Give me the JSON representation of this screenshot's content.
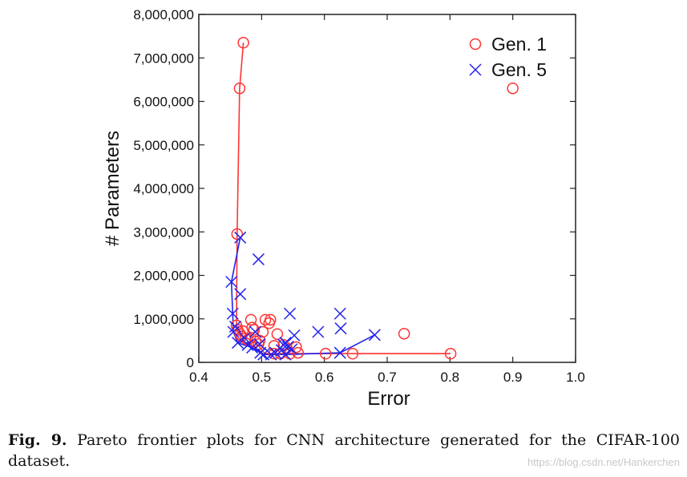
{
  "chart_data": {
    "type": "scatter",
    "title": "",
    "xlabel": "Error",
    "ylabel": "# Parameters",
    "xlim": [
      0.4,
      1.0
    ],
    "ylim": [
      0,
      8000000
    ],
    "xticks": [
      "0.4",
      "0.5",
      "0.6",
      "0.7",
      "0.8",
      "0.9",
      "1.0"
    ],
    "yticks": [
      "0",
      "1,000,000",
      "2,000,000",
      "3,000,000",
      "4,000,000",
      "5,000,000",
      "6,000,000",
      "7,000,000",
      "8,000,000"
    ],
    "grid": false,
    "legend_position": "top-right",
    "series": [
      {
        "name": "Gen. 1",
        "marker": "circle",
        "color": "#ff3333",
        "points": [
          [
            0.471,
            7350000
          ],
          [
            0.465,
            6300000
          ],
          [
            0.9,
            6300000
          ],
          [
            0.461,
            2950000
          ],
          [
            0.46,
            850000
          ],
          [
            0.462,
            750000
          ],
          [
            0.466,
            650000
          ],
          [
            0.47,
            720000
          ],
          [
            0.468,
            600000
          ],
          [
            0.474,
            550000
          ],
          [
            0.478,
            520000
          ],
          [
            0.483,
            980000
          ],
          [
            0.485,
            800000
          ],
          [
            0.488,
            750000
          ],
          [
            0.49,
            480000
          ],
          [
            0.495,
            420000
          ],
          [
            0.497,
            500000
          ],
          [
            0.502,
            700000
          ],
          [
            0.506,
            980000
          ],
          [
            0.512,
            900000
          ],
          [
            0.514,
            980000
          ],
          [
            0.52,
            380000
          ],
          [
            0.525,
            650000
          ],
          [
            0.53,
            200000
          ],
          [
            0.52,
            200000
          ],
          [
            0.535,
            400000
          ],
          [
            0.54,
            330000
          ],
          [
            0.545,
            200000
          ],
          [
            0.555,
            350000
          ],
          [
            0.558,
            220000
          ],
          [
            0.602,
            200000
          ],
          [
            0.645,
            200000
          ],
          [
            0.727,
            660000
          ],
          [
            0.801,
            200000
          ]
        ],
        "frontier": [
          [
            0.471,
            7350000
          ],
          [
            0.465,
            6300000
          ],
          [
            0.461,
            2950000
          ],
          [
            0.46,
            850000
          ],
          [
            0.468,
            600000
          ],
          [
            0.49,
            480000
          ],
          [
            0.505,
            200000
          ],
          [
            0.801,
            200000
          ]
        ]
      },
      {
        "name": "Gen. 5",
        "marker": "x",
        "color": "#2222ee",
        "points": [
          [
            0.466,
            2870000
          ],
          [
            0.495,
            2370000
          ],
          [
            0.452,
            1850000
          ],
          [
            0.466,
            1570000
          ],
          [
            0.454,
            1120000
          ],
          [
            0.545,
            1120000
          ],
          [
            0.625,
            1120000
          ],
          [
            0.458,
            820000
          ],
          [
            0.626,
            780000
          ],
          [
            0.59,
            700000
          ],
          [
            0.68,
            630000
          ],
          [
            0.552,
            620000
          ],
          [
            0.49,
            700000
          ],
          [
            0.497,
            420000
          ],
          [
            0.473,
            560000
          ],
          [
            0.478,
            400000
          ],
          [
            0.485,
            340000
          ],
          [
            0.455,
            700000
          ],
          [
            0.462,
            450000
          ],
          [
            0.498,
            220000
          ],
          [
            0.503,
            180000
          ],
          [
            0.515,
            180000
          ],
          [
            0.522,
            220000
          ],
          [
            0.532,
            280000
          ],
          [
            0.535,
            400000
          ],
          [
            0.538,
            450000
          ],
          [
            0.542,
            360000
          ],
          [
            0.548,
            300000
          ],
          [
            0.538,
            180000
          ],
          [
            0.625,
            220000
          ]
        ],
        "frontier": [
          [
            0.466,
            2870000
          ],
          [
            0.452,
            1850000
          ],
          [
            0.454,
            1120000
          ],
          [
            0.455,
            700000
          ],
          [
            0.462,
            450000
          ],
          [
            0.485,
            340000
          ],
          [
            0.498,
            220000
          ],
          [
            0.503,
            180000
          ],
          [
            0.538,
            180000
          ],
          [
            0.625,
            220000
          ],
          [
            0.68,
            630000
          ]
        ]
      }
    ]
  },
  "caption": {
    "label": "Fig. 9.",
    "text": "Pareto frontier plots for CNN architecture generated for the CIFAR-100 dataset."
  },
  "watermark": "https://blog.csdn.net/Hankerchen"
}
